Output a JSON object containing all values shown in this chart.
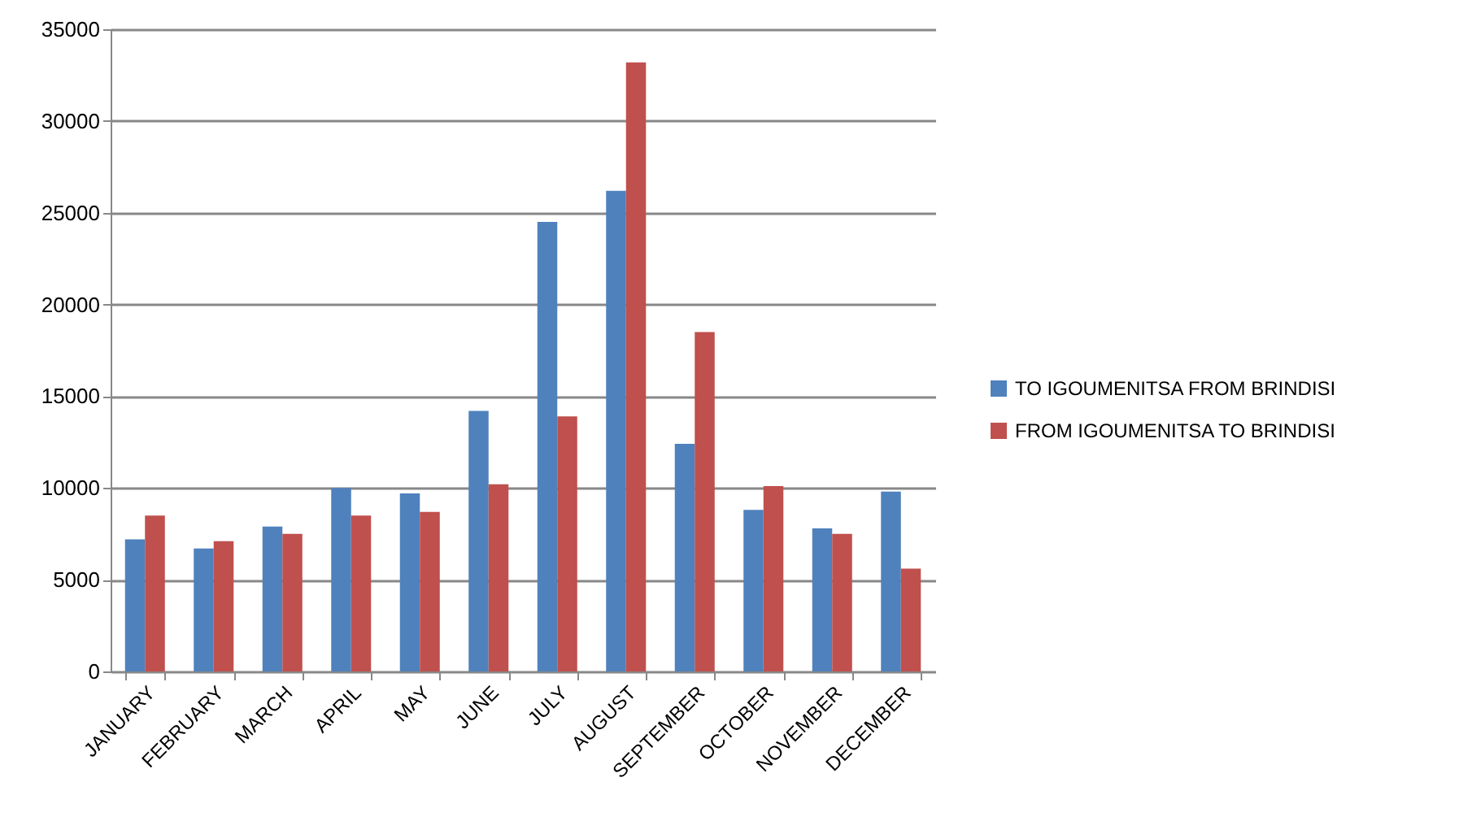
{
  "chart_data": {
    "type": "bar",
    "categories": [
      "JANUARY",
      "FEBRUARY",
      "MARCH",
      "APRIL",
      "MAY",
      "JUNE",
      "JULY",
      "AUGUST",
      "SEPTEMBER",
      "OCTOBER",
      "NOVEMBER",
      "DECEMBER"
    ],
    "series": [
      {
        "name": "TO IGOUMENITSA FROM BRINDISI",
        "color": "#4f81bd",
        "values": [
          7200,
          6700,
          7900,
          10000,
          9700,
          14200,
          24500,
          26200,
          12400,
          8800,
          7800,
          9800
        ]
      },
      {
        "name": "FROM IGOUMENITSA TO BRINDISI",
        "color": "#c0504d",
        "values": [
          8500,
          7100,
          7500,
          8500,
          8700,
          10200,
          13900,
          33200,
          18500,
          10100,
          7500,
          5600
        ]
      }
    ],
    "ylim": [
      0,
      35000
    ],
    "yticks": [
      0,
      5000,
      10000,
      15000,
      20000,
      25000,
      30000,
      35000
    ],
    "grid": "y",
    "legend": "right"
  }
}
